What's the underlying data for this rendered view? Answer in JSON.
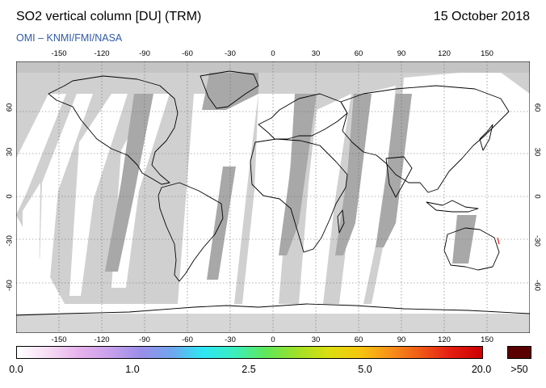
{
  "header": {
    "title": "SO2 vertical column [DU] (TRM)",
    "date": "15 October 2018",
    "source": "OMI  –  KNMI/FMI/NASA"
  },
  "map": {
    "longitude_ticks": [
      "-150",
      "-120",
      "-90",
      "-60",
      "-30",
      "0",
      "30",
      "60",
      "90",
      "120",
      "150"
    ],
    "latitude_ticks": [
      "60",
      "30",
      "0",
      "-30",
      "-60"
    ],
    "colors": {
      "no_data": "#d0d0d0",
      "land_gap": "#a8a8a8",
      "coverage": "#ffffff",
      "coastline": "#000000"
    }
  },
  "colorbar": {
    "labels": [
      "0.0",
      "1.0",
      "2.5",
      "5.0",
      "20.0"
    ],
    "overflow_label": ">50",
    "overflow_color": "#5a0000",
    "gradient": [
      "#ffffff",
      "#f6dcf3",
      "#e7b2ec",
      "#c8a0ec",
      "#9a8ee8",
      "#6fa6ef",
      "#2ee7f4",
      "#3aeebf",
      "#5ee85b",
      "#9ee029",
      "#d8df10",
      "#f5c80e",
      "#f79318",
      "#f05a16",
      "#e41c12",
      "#cc0000"
    ]
  }
}
